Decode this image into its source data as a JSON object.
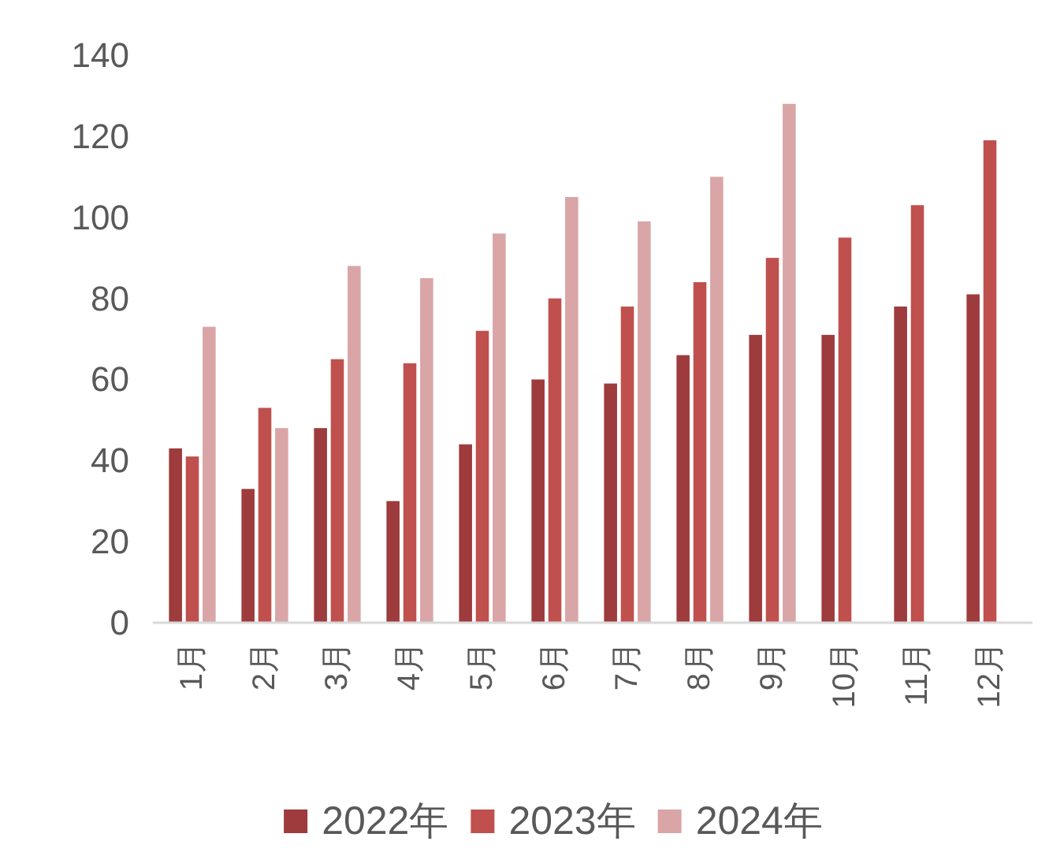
{
  "chart_data": {
    "type": "bar",
    "categories": [
      "1月",
      "2月",
      "3月",
      "4月",
      "5月",
      "6月",
      "7月",
      "8月",
      "9月",
      "10月",
      "11月",
      "12月"
    ],
    "series": [
      {
        "name": "2022年",
        "color": "#9e3b3d",
        "values": [
          43,
          33,
          48,
          30,
          44,
          60,
          59,
          66,
          71,
          71,
          78,
          81
        ]
      },
      {
        "name": "2023年",
        "color": "#c0504d",
        "values": [
          41,
          53,
          65,
          64,
          72,
          80,
          78,
          84,
          90,
          95,
          103,
          119
        ]
      },
      {
        "name": "2024年",
        "color": "#d9a5a6",
        "values": [
          73,
          48,
          88,
          85,
          96,
          105,
          99,
          110,
          128,
          null,
          null,
          null
        ]
      }
    ],
    "ylim": [
      0,
      140
    ],
    "yticks": [
      0,
      20,
      40,
      60,
      80,
      100,
      120,
      140
    ],
    "legend": "bottom"
  }
}
